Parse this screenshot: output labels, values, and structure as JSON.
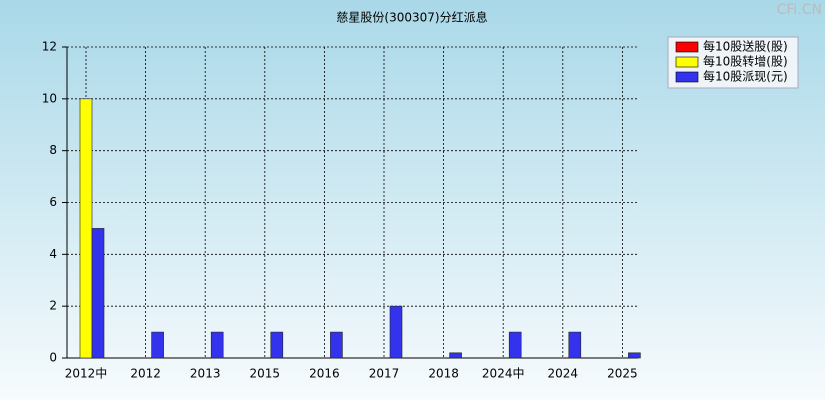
{
  "chart_data": {
    "type": "bar",
    "title": "慈星股份(300307)分红派息",
    "watermark": "CFi.CN",
    "categories": [
      "2012中",
      "2012",
      "2013",
      "2015",
      "2016",
      "2017",
      "2018",
      "2024中",
      "2024",
      "2025"
    ],
    "series": [
      {
        "name": "每10股送股(股)",
        "color": "#ff0000",
        "values": [
          0,
          0,
          0,
          0,
          0,
          0,
          0,
          0,
          0,
          0
        ]
      },
      {
        "name": "每10股转增(股)",
        "color": "#ffff00",
        "values": [
          10,
          0,
          0,
          0,
          0,
          0,
          0,
          0,
          0,
          0
        ]
      },
      {
        "name": "每10股派现(元)",
        "color": "#3333ee",
        "values": [
          5,
          1,
          1,
          1,
          1,
          2,
          0.2,
          1,
          1,
          0.2
        ]
      }
    ],
    "ylim": [
      0,
      12
    ],
    "yticks": [
      0,
      2,
      4,
      6,
      8,
      10,
      12
    ],
    "grid": true,
    "legend": "top-right"
  }
}
